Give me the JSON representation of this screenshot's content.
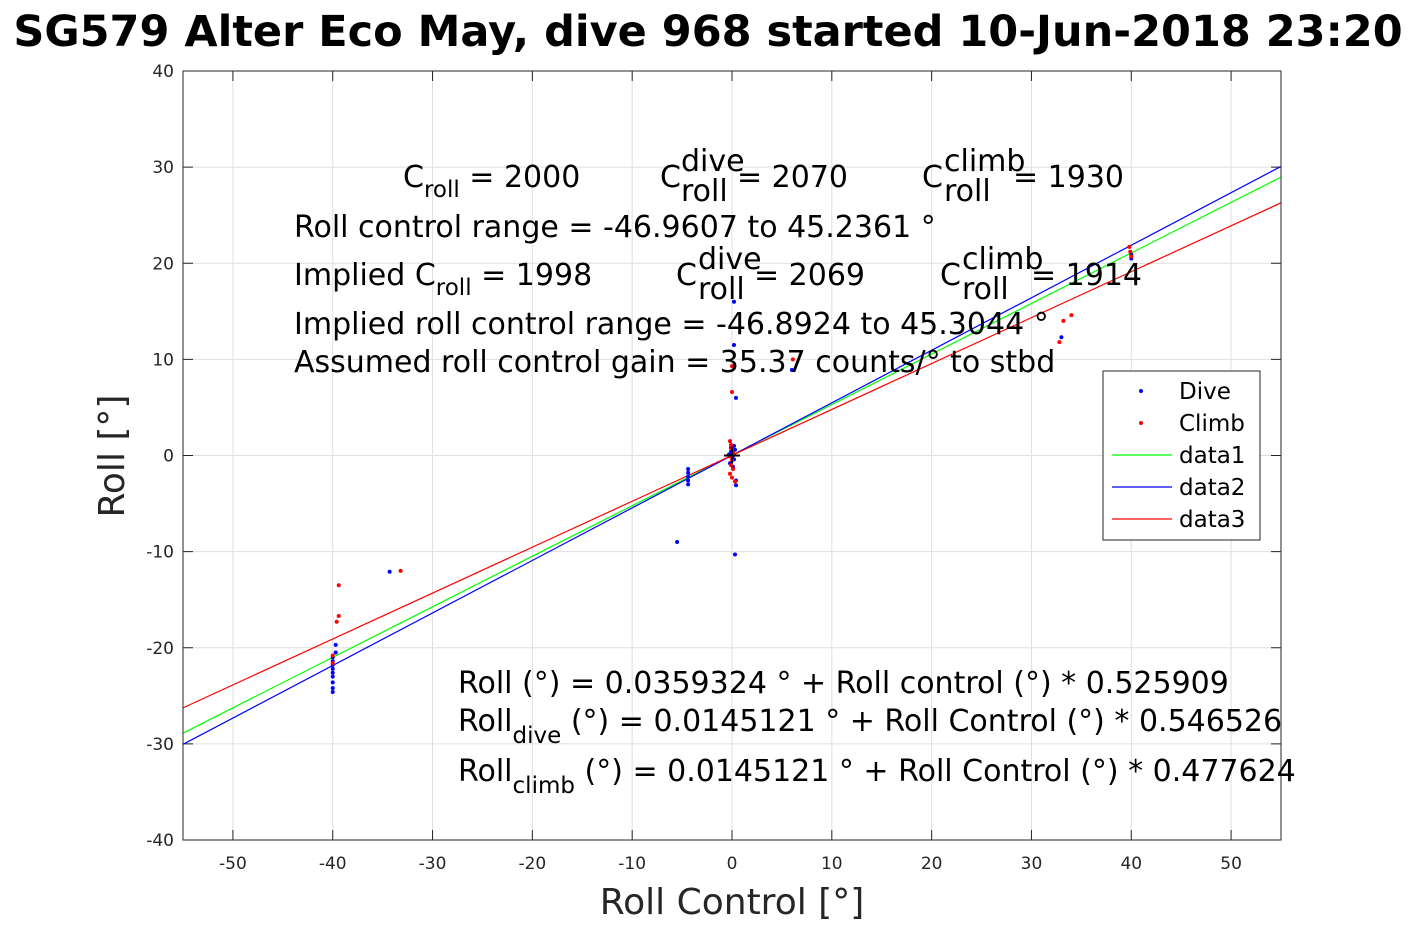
{
  "chart_data": {
    "type": "scatter",
    "title": "SG579 Alter Eco May, dive 968 started 10-Jun-2018 23:20",
    "xlabel": "Roll Control [°]",
    "ylabel": "Roll [°]",
    "xlim": [
      -55,
      55
    ],
    "ylim": [
      -40,
      40
    ],
    "xticks": [
      -50,
      -40,
      -30,
      -20,
      -10,
      0,
      10,
      20,
      30,
      40,
      50
    ],
    "yticks": [
      -40,
      -30,
      -20,
      -10,
      0,
      10,
      20,
      30,
      40
    ],
    "grid": true,
    "legend_position": "right",
    "annotations": {
      "c_roll": {
        "base": "C",
        "sub": "roll",
        "value": " = 2000"
      },
      "c_roll_dive": {
        "base": "C",
        "sub": "roll",
        "sup": "dive",
        "value": " = 2070"
      },
      "c_roll_climb": {
        "base": "C",
        "sub": "roll",
        "sup": "climb",
        "value": " = 1930"
      },
      "range": "Roll control range = -46.9607 to 45.2361 °",
      "implied_c_roll": {
        "prefix": "Implied C",
        "sub": "roll",
        "value": " = 1998"
      },
      "implied_c_dive": {
        "base": "C",
        "sub": "roll",
        "sup": "dive",
        "value": " = 2069"
      },
      "implied_c_climb": {
        "base": "C",
        "sub": "roll",
        "sup": "climb",
        "value": " = 1914"
      },
      "implied_range": "Implied roll control range = -46.8924 to 45.3044 °",
      "gain": "Assumed roll control gain = 35.37 counts/° to stbd",
      "eq_all": "Roll (°) = 0.0359324 ° + Roll control (°) * 0.525909",
      "eq_dive": {
        "base": "Roll",
        "sub": "dive",
        "rest": " (°) = 0.0145121 ° + Roll Control (°) * 0.546526"
      },
      "eq_climb": {
        "base": "Roll",
        "sub": "climb",
        "rest": " (°) = 0.0145121 ° + Roll Control (°) * 0.477624"
      }
    },
    "colors": {
      "dive": "#0000ff",
      "climb": "#ff0000",
      "data1": "#00ff00",
      "data2": "#0000ff",
      "data3": "#ff0000"
    },
    "series": [
      {
        "name": "Dive",
        "kind": "points",
        "color": "#0000ff",
        "points": [
          [
            -40.0,
            -24.6
          ],
          [
            -40.0,
            -24.2
          ],
          [
            -40.0,
            -23.6
          ],
          [
            -40.0,
            -23.0
          ],
          [
            -40.0,
            -22.6
          ],
          [
            -40.0,
            -22.2
          ],
          [
            -40.0,
            -21.8
          ],
          [
            -40.0,
            -21.4
          ],
          [
            -40.0,
            -21.0
          ],
          [
            -39.7,
            -20.5
          ],
          [
            -39.7,
            -19.7
          ],
          [
            -34.3,
            -12.1
          ],
          [
            -5.5,
            -9.0
          ],
          [
            -4.4,
            -1.4
          ],
          [
            -4.4,
            -1.8
          ],
          [
            -4.4,
            -2.2
          ],
          [
            -4.4,
            -2.6
          ],
          [
            -4.4,
            -3.0
          ],
          [
            0.2,
            16.0
          ],
          [
            0.2,
            11.5
          ],
          [
            0.4,
            6.0
          ],
          [
            0.4,
            -2.6
          ],
          [
            0.4,
            -3.1
          ],
          [
            0.3,
            -10.3
          ],
          [
            -0.1,
            0.8
          ],
          [
            -0.1,
            0.4
          ],
          [
            0.1,
            0.0
          ],
          [
            0.2,
            -0.4
          ],
          [
            0.0,
            0.2
          ],
          [
            0.3,
            0.6
          ],
          [
            -0.2,
            -0.8
          ],
          [
            0.1,
            -1.2
          ],
          [
            0.2,
            1.0
          ],
          [
            -0.3,
            0.1
          ],
          [
            6.0,
            8.9
          ],
          [
            33.0,
            12.3
          ],
          [
            40.0,
            20.9
          ],
          [
            40.0,
            20.5
          ]
        ]
      },
      {
        "name": "Climb",
        "kind": "points",
        "color": "#ff0000",
        "points": [
          [
            -39.4,
            -13.5
          ],
          [
            -39.4,
            -16.7
          ],
          [
            -39.6,
            -17.3
          ],
          [
            -40.0,
            -20.8
          ],
          [
            -40.0,
            -21.6
          ],
          [
            -33.2,
            -12.0
          ],
          [
            0.0,
            9.3
          ],
          [
            0.0,
            6.6
          ],
          [
            -0.2,
            1.5
          ],
          [
            -0.1,
            1.1
          ],
          [
            0.0,
            0.7
          ],
          [
            0.1,
            0.3
          ],
          [
            -0.2,
            -0.1
          ],
          [
            0.0,
            -0.5
          ],
          [
            -0.1,
            -1.0
          ],
          [
            0.1,
            -1.4
          ],
          [
            -0.2,
            -1.9
          ],
          [
            0.0,
            -2.3
          ],
          [
            0.3,
            -2.7
          ],
          [
            6.1,
            10.0
          ],
          [
            32.8,
            11.8
          ],
          [
            33.2,
            14.0
          ],
          [
            34.0,
            14.6
          ],
          [
            39.8,
            21.7
          ],
          [
            39.9,
            21.2
          ],
          [
            40.0,
            20.7
          ]
        ]
      },
      {
        "name": "data1",
        "kind": "line",
        "color": "#00ff00",
        "intercept": 0.0359324,
        "slope": 0.525909
      },
      {
        "name": "data2",
        "kind": "line",
        "color": "#0000ff",
        "intercept": 0.0145121,
        "slope": 0.546526
      },
      {
        "name": "data3",
        "kind": "line",
        "color": "#ff0000",
        "intercept": 0.0145121,
        "slope": 0.477624
      }
    ]
  }
}
